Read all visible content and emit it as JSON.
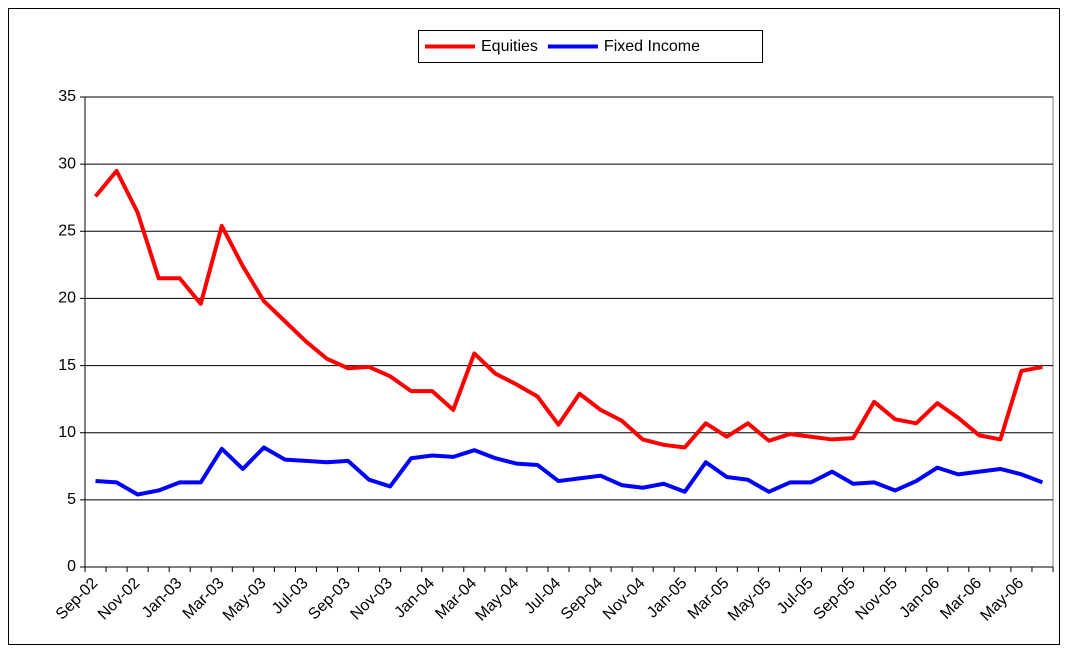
{
  "chart_data": {
    "type": "line",
    "categories": [
      "Sep-02",
      null,
      "Nov-02",
      null,
      "Jan-03",
      null,
      "Mar-03",
      null,
      "May-03",
      null,
      "Jul-03",
      null,
      "Sep-03",
      null,
      "Nov-03",
      null,
      "Jan-04",
      null,
      "Mar-04",
      null,
      "May-04",
      null,
      "Jul-04",
      null,
      "Sep-04",
      null,
      "Nov-04",
      null,
      "Jan-05",
      null,
      "Mar-05",
      null,
      "May-05",
      null,
      "Jul-05",
      null,
      "Sep-05",
      null,
      "Nov-05",
      null,
      "Jan-06",
      null,
      "Mar-06",
      null,
      "May-06",
      null
    ],
    "series": [
      {
        "name": "Equities",
        "color": "#ff0000",
        "values": [
          27.6,
          29.5,
          26.4,
          21.5,
          21.5,
          19.6,
          25.4,
          22.4,
          19.8,
          18.3,
          16.8,
          15.5,
          14.8,
          14.9,
          14.2,
          13.1,
          13.1,
          11.7,
          15.9,
          14.4,
          13.6,
          12.7,
          10.6,
          12.9,
          11.7,
          10.9,
          9.5,
          9.1,
          8.9,
          10.7,
          9.7,
          10.7,
          9.4,
          9.9,
          9.7,
          9.5,
          9.6,
          12.3,
          11.0,
          10.7,
          12.2,
          11.1,
          9.8,
          9.5,
          14.6,
          14.9
        ]
      },
      {
        "name": "Fixed Income",
        "color": "#0000ff",
        "values": [
          6.4,
          6.3,
          5.4,
          5.7,
          6.3,
          6.3,
          8.8,
          7.3,
          8.9,
          8.0,
          7.9,
          7.8,
          7.9,
          6.5,
          6.0,
          8.1,
          8.3,
          8.2,
          8.7,
          8.1,
          7.7,
          7.6,
          6.4,
          6.6,
          6.8,
          6.1,
          5.9,
          6.2,
          5.6,
          7.8,
          6.7,
          6.5,
          5.6,
          6.3,
          6.3,
          7.1,
          6.2,
          6.3,
          5.7,
          6.4,
          7.4,
          6.9,
          7.1,
          7.3,
          6.9,
          6.3
        ]
      }
    ],
    "ylim": [
      0,
      35
    ],
    "yticks": [
      0,
      5,
      10,
      15,
      20,
      25,
      30,
      35
    ],
    "grid": true,
    "legend": "top"
  }
}
